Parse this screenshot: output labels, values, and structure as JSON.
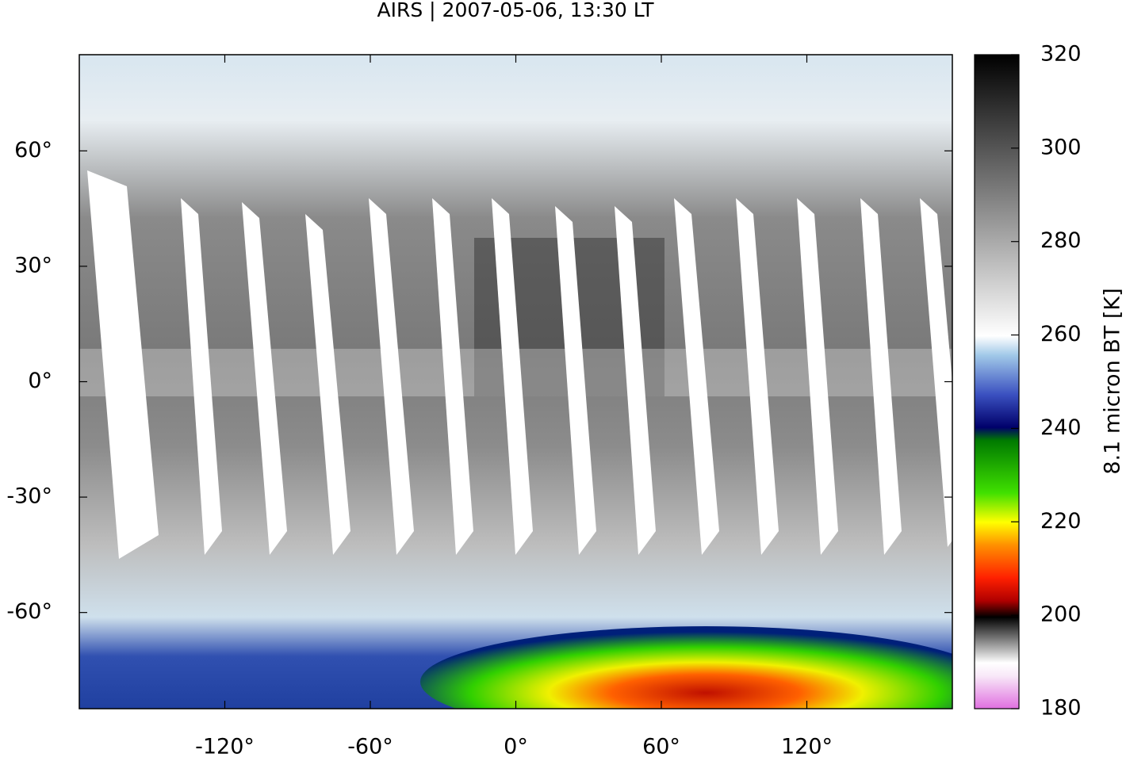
{
  "title": "AIRS | 2007-05-06, 13:30 LT",
  "map": {
    "xlim": [
      -180,
      180
    ],
    "ylim": [
      -85,
      85
    ],
    "xticks": [
      {
        "value": -120,
        "label": "-120°"
      },
      {
        "value": -60,
        "label": "-60°"
      },
      {
        "value": 0,
        "label": "0°"
      },
      {
        "value": 60,
        "label": "60°"
      },
      {
        "value": 120,
        "label": "120°"
      }
    ],
    "yticks": [
      {
        "value": -60,
        "label": "-60°"
      },
      {
        "value": -30,
        "label": "-30°"
      },
      {
        "value": 0,
        "label": "0°"
      },
      {
        "value": 30,
        "label": "30°"
      },
      {
        "value": 60,
        "label": "60°"
      }
    ]
  },
  "colorbar": {
    "label": "8.1 micron BT [K]",
    "lim": [
      180,
      320
    ],
    "ticks": [
      180,
      200,
      220,
      240,
      260,
      280,
      300,
      320
    ]
  }
}
